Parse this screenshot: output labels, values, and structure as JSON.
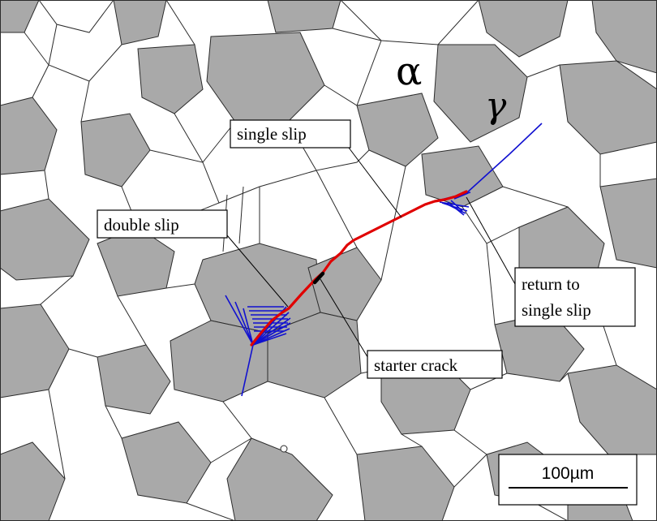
{
  "phases": {
    "alpha": "α",
    "gamma": "γ"
  },
  "callouts": {
    "single_slip": "single slip",
    "double_slip": "double slip",
    "return_line1": "return to",
    "return_line2": "single slip",
    "starter_crack": "starter crack"
  },
  "scale_bar": {
    "label": "100µm"
  },
  "colors": {
    "crack": "#e00000",
    "slip": "#1010d0",
    "gamma_grain": "#a9a9a9",
    "alpha_grain": "#ffffff",
    "boundary": "#2b2b2b"
  }
}
